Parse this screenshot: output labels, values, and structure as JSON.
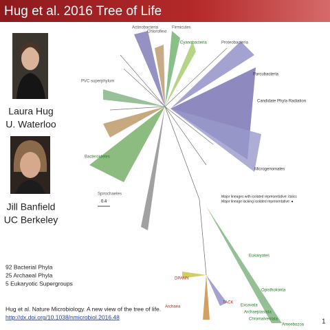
{
  "header": {
    "title": "Hug et al. 2016 Tree of Life"
  },
  "people": [
    {
      "name": "Laura Hug",
      "affiliation": "U. Waterloo"
    },
    {
      "name": "Jill Banfield",
      "affiliation": "UC Berkeley"
    }
  ],
  "stats": [
    "92 Bacterial Phyla",
    "25 Archaeal Phyla",
    "5 Eukaryotic Supergroups"
  ],
  "citation": {
    "text": "Hug et al. Nature Microbiology. A new view of the tree of life.",
    "link": "http://dx.doi.org/10.1038/nmicrobiol.2016.48"
  },
  "page_number": "1",
  "tree": {
    "labels": [
      "Parcubacteria",
      "Candidate Phyla Radiation",
      "Microgenomates",
      "PVC superphylum",
      "Eukaryotes",
      "Archaea",
      "TACK",
      "DPANN",
      "Excavata",
      "Archaeplastida",
      "Chromalveolata",
      "Amoebozoa",
      "Opisthokonta",
      "Cyanobacteria",
      "Chloroflexi",
      "Firmicutes",
      "Actinobacteria",
      "Bacteroidetes",
      "Spirochaetes",
      "Proteobacteria"
    ],
    "legend": [
      "Major lineages with isolated representative: italics",
      "Major lineage lacking isolated representative: ●"
    ],
    "scale": "0.4"
  }
}
